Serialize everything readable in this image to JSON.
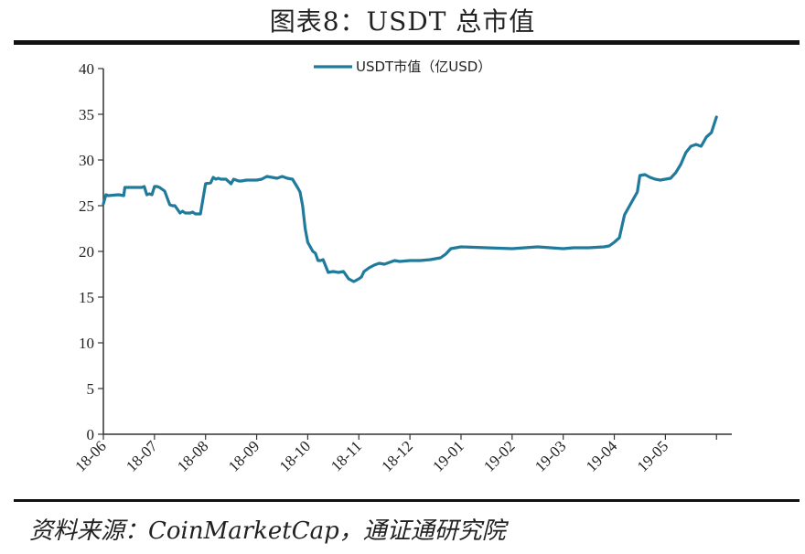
{
  "title": "图表8：USDT 总市值",
  "source": "资料来源：CoinMarketCap，通证通研究院",
  "colors": {
    "line": "#1f7a9c",
    "axis": "#333333"
  },
  "chart_data": {
    "type": "line",
    "title": "图表8：USDT 总市值",
    "xlabel": "",
    "ylabel": "",
    "ylim": [
      0,
      40
    ],
    "yticks": [
      "0",
      "5",
      "10",
      "15",
      "20",
      "25",
      "30",
      "35",
      "40"
    ],
    "xticks": [
      "18-06",
      "18-07",
      "18-08",
      "18-09",
      "18-10",
      "18-11",
      "18-12",
      "19-01",
      "19-02",
      "19-03",
      "19-04",
      "19-05"
    ],
    "xlim": [
      0,
      12.3
    ],
    "grid": false,
    "legend_position": "top",
    "series": [
      {
        "name": "USDT市值（亿USD）",
        "x": [
          0,
          0.05,
          0.1,
          0.3,
          0.4,
          0.42,
          0.75,
          0.8,
          0.85,
          0.9,
          0.95,
          1.0,
          1.05,
          1.1,
          1.2,
          1.3,
          1.35,
          1.4,
          1.5,
          1.55,
          1.6,
          1.7,
          1.75,
          1.8,
          1.85,
          1.9,
          2.0,
          2.1,
          2.15,
          2.2,
          2.25,
          2.3,
          2.35,
          2.4,
          2.5,
          2.55,
          2.6,
          2.65,
          2.7,
          2.8,
          3.0,
          3.1,
          3.2,
          3.3,
          3.4,
          3.5,
          3.6,
          3.7,
          3.8,
          3.85,
          3.9,
          3.95,
          4.0,
          4.05,
          4.1,
          4.15,
          4.2,
          4.25,
          4.3,
          4.4,
          4.5,
          4.6,
          4.7,
          4.8,
          4.9,
          5.0,
          5.05,
          5.1,
          5.2,
          5.3,
          5.4,
          5.5,
          5.6,
          5.7,
          5.8,
          6.0,
          6.2,
          6.4,
          6.6,
          6.7,
          6.8,
          7.0,
          7.5,
          8.0,
          8.5,
          9.0,
          9.2,
          9.5,
          9.8,
          9.9,
          10.0,
          10.1,
          10.2,
          10.3,
          10.4,
          10.45,
          10.5,
          10.6,
          10.7,
          10.8,
          10.9,
          11.0,
          11.1,
          11.2,
          11.3,
          11.4,
          11.5,
          11.6,
          11.7,
          11.8,
          11.9,
          12.0
        ],
        "values": [
          25.2,
          26.2,
          26.1,
          26.2,
          26.1,
          27.0,
          27.0,
          27.1,
          26.2,
          26.3,
          26.2,
          27.1,
          27.1,
          27.0,
          26.6,
          25.1,
          25.0,
          25.0,
          24.2,
          24.4,
          24.2,
          24.2,
          24.3,
          24.1,
          24.1,
          24.1,
          27.4,
          27.5,
          28.1,
          27.9,
          28.0,
          27.9,
          27.9,
          27.9,
          27.4,
          27.9,
          27.8,
          27.7,
          27.7,
          27.8,
          27.8,
          27.9,
          28.2,
          28.1,
          28.0,
          28.2,
          28.0,
          27.9,
          27.0,
          26.5,
          25.0,
          22.5,
          21.0,
          20.5,
          20.0,
          19.8,
          19.0,
          19.0,
          19.1,
          17.7,
          17.8,
          17.7,
          17.8,
          17.0,
          16.7,
          17.0,
          17.2,
          17.8,
          18.2,
          18.5,
          18.7,
          18.6,
          18.8,
          19.0,
          18.9,
          19.0,
          19.0,
          19.1,
          19.3,
          19.7,
          20.3,
          20.5,
          20.4,
          20.3,
          20.5,
          20.3,
          20.4,
          20.4,
          20.5,
          20.6,
          21.0,
          21.5,
          24.0,
          25.0,
          26.0,
          26.5,
          28.3,
          28.4,
          28.1,
          27.9,
          27.8,
          27.9,
          28.0,
          28.6,
          29.5,
          30.8,
          31.5,
          31.7,
          31.5,
          32.5,
          33.0,
          34.7
        ]
      }
    ]
  }
}
